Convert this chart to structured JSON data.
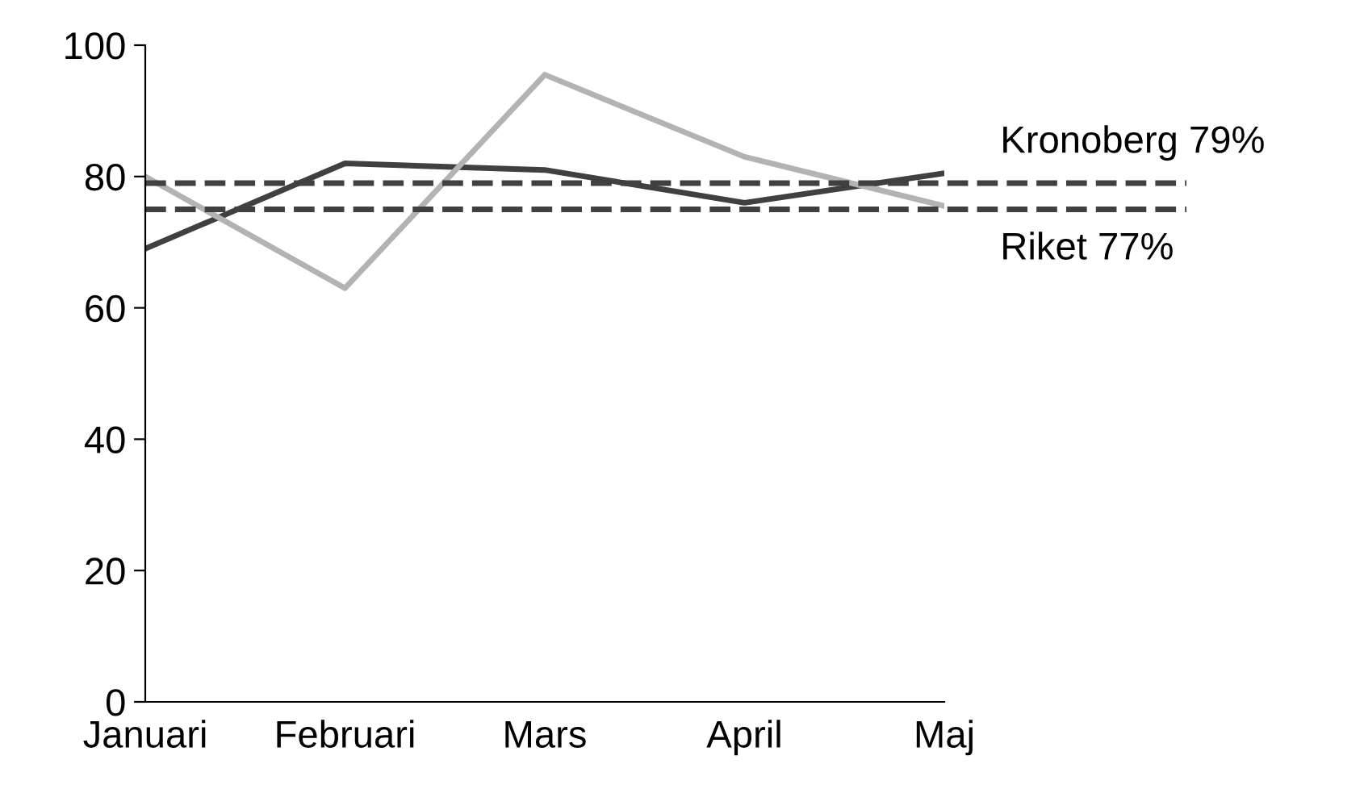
{
  "chart_data": {
    "type": "line",
    "categories": [
      "Januari",
      "Februari",
      "Mars",
      "April",
      "Maj"
    ],
    "series": [
      {
        "color": "#404040",
        "values": [
          69,
          82,
          81,
          76,
          80.5
        ]
      },
      {
        "color": "#b3b3b3",
        "values": [
          80,
          63,
          95.5,
          83,
          75.5
        ]
      }
    ],
    "ylim": [
      0,
      100
    ],
    "yticks": [
      0,
      20,
      40,
      60,
      80,
      100
    ],
    "grid": false,
    "legend": false,
    "marker": "none",
    "line_style": "solid",
    "ref_lines": [
      {
        "axis": "y",
        "value": 79,
        "label": "Kronoberg 79%",
        "color": "#404040",
        "line_style": "dashed"
      },
      {
        "axis": "y",
        "value": 75,
        "label": "Riket 77%",
        "color": "#404040",
        "line_style": "dashed"
      }
    ]
  }
}
